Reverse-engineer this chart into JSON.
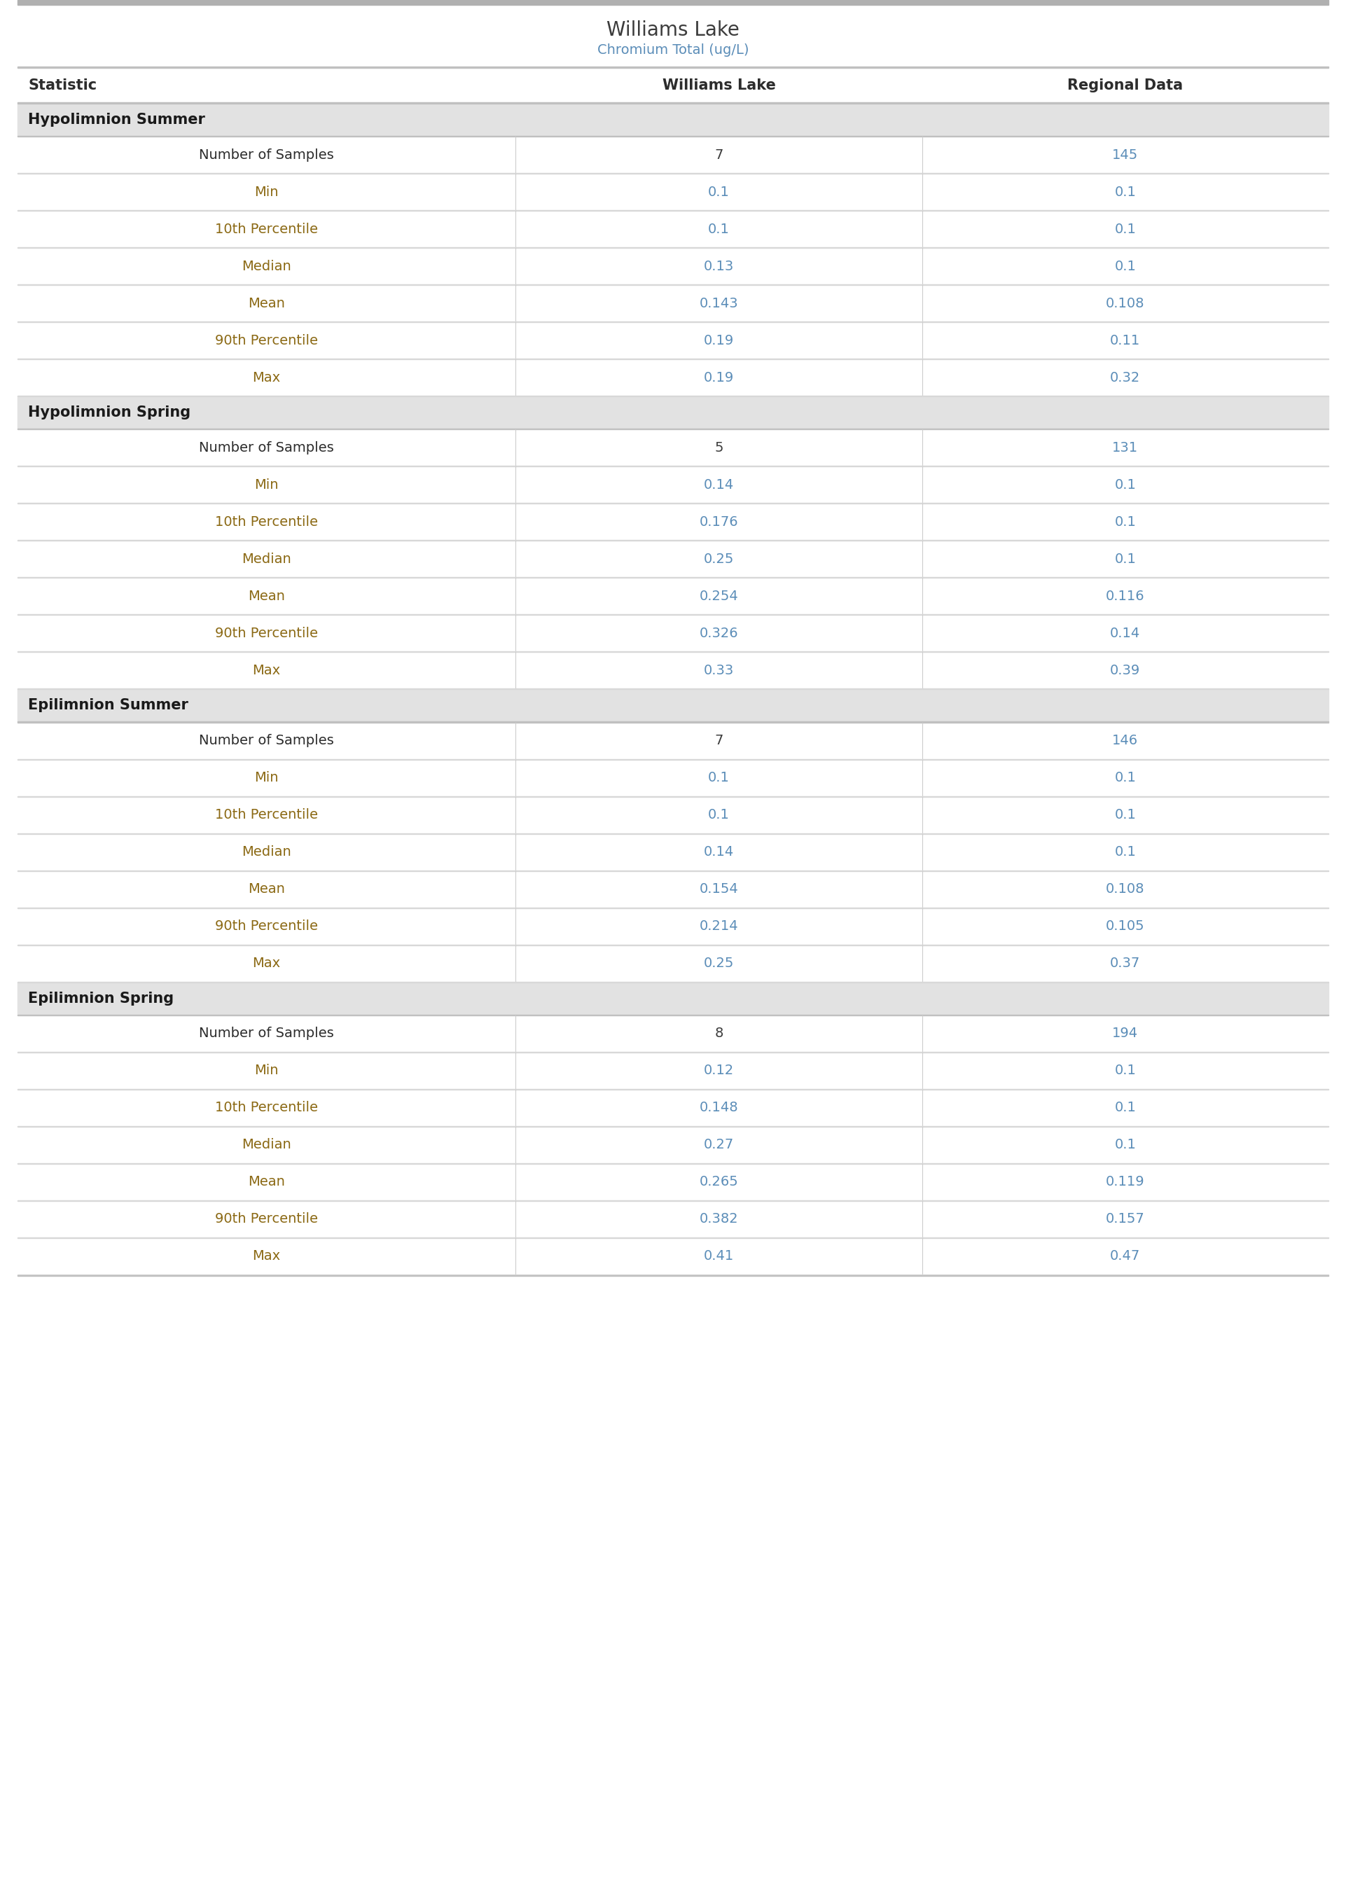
{
  "title": "Williams Lake",
  "subtitle": "Chromium Total (ug/L)",
  "col_headers": [
    "Statistic",
    "Williams Lake",
    "Regional Data"
  ],
  "sections": [
    {
      "header": "Hypolimnion Summer",
      "rows": [
        [
          "Number of Samples",
          "7",
          "145"
        ],
        [
          "Min",
          "0.1",
          "0.1"
        ],
        [
          "10th Percentile",
          "0.1",
          "0.1"
        ],
        [
          "Median",
          "0.13",
          "0.1"
        ],
        [
          "Mean",
          "0.143",
          "0.108"
        ],
        [
          "90th Percentile",
          "0.19",
          "0.11"
        ],
        [
          "Max",
          "0.19",
          "0.32"
        ]
      ]
    },
    {
      "header": "Hypolimnion Spring",
      "rows": [
        [
          "Number of Samples",
          "5",
          "131"
        ],
        [
          "Min",
          "0.14",
          "0.1"
        ],
        [
          "10th Percentile",
          "0.176",
          "0.1"
        ],
        [
          "Median",
          "0.25",
          "0.1"
        ],
        [
          "Mean",
          "0.254",
          "0.116"
        ],
        [
          "90th Percentile",
          "0.326",
          "0.14"
        ],
        [
          "Max",
          "0.33",
          "0.39"
        ]
      ]
    },
    {
      "header": "Epilimnion Summer",
      "rows": [
        [
          "Number of Samples",
          "7",
          "146"
        ],
        [
          "Min",
          "0.1",
          "0.1"
        ],
        [
          "10th Percentile",
          "0.1",
          "0.1"
        ],
        [
          "Median",
          "0.14",
          "0.1"
        ],
        [
          "Mean",
          "0.154",
          "0.108"
        ],
        [
          "90th Percentile",
          "0.214",
          "0.105"
        ],
        [
          "Max",
          "0.25",
          "0.37"
        ]
      ]
    },
    {
      "header": "Epilimnion Spring",
      "rows": [
        [
          "Number of Samples",
          "8",
          "194"
        ],
        [
          "Min",
          "0.12",
          "0.1"
        ],
        [
          "10th Percentile",
          "0.148",
          "0.1"
        ],
        [
          "Median",
          "0.27",
          "0.1"
        ],
        [
          "Mean",
          "0.265",
          "0.119"
        ],
        [
          "90th Percentile",
          "0.382",
          "0.157"
        ],
        [
          "Max",
          "0.41",
          "0.47"
        ]
      ]
    }
  ],
  "bg_color": "#ffffff",
  "section_header_bg_color": "#e2e2e2",
  "col_header_bg_color": "#ffffff",
  "top_bar_color": "#b0b0b0",
  "col_divider_color": "#cccccc",
  "row_divider_color": "#d8d8d8",
  "header_divider_color": "#c0c0c0",
  "title_color": "#3c3c3c",
  "subtitle_color": "#5b8db8",
  "col_header_color": "#2c2c2c",
  "section_header_color": "#1a1a1a",
  "stat_label_color": "#8b6914",
  "value_col1_color": "#5b8db8",
  "value_col2_color": "#5b8db8",
  "samples_col1_color": "#3c3c3c",
  "samples_col2_color": "#5b8db8",
  "title_fontsize": 20,
  "subtitle_fontsize": 14,
  "col_header_fontsize": 15,
  "section_header_fontsize": 15,
  "stat_fontsize": 14,
  "value_fontsize": 14
}
